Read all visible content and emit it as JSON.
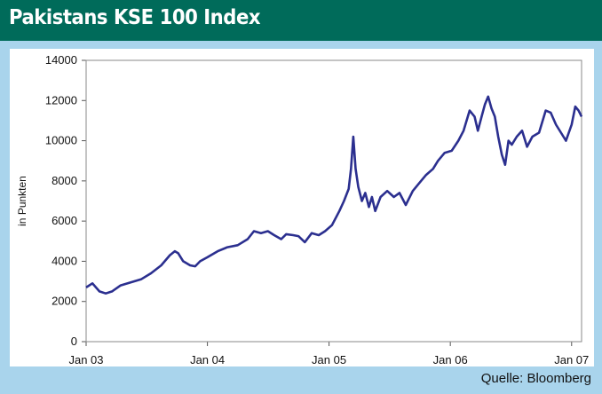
{
  "header": {
    "title": "Pakistans KSE 100 Index"
  },
  "footer": {
    "source": "Quelle: Bloomberg"
  },
  "colors": {
    "header_bg": "#006b5a",
    "background": "#a9d4ec",
    "line": "#2b2f8f",
    "plot_bg": "#ffffff"
  },
  "chart_data": {
    "type": "line",
    "title": "Pakistans KSE 100 Index",
    "xlabel": "",
    "ylabel": "in Punkten",
    "ylim": [
      0,
      14000
    ],
    "xlim": [
      "2003-01-01",
      "2007-01-31"
    ],
    "yticks": [
      "0",
      "2000",
      "4000",
      "6000",
      "8000",
      "10000",
      "12000",
      "14000"
    ],
    "xticks": [
      {
        "label": "Jan 03",
        "date": "2003-01-01"
      },
      {
        "label": "Jan 04",
        "date": "2004-01-01"
      },
      {
        "label": "Jan 05",
        "date": "2005-01-01"
      },
      {
        "label": "Jan 06",
        "date": "2006-01-01"
      },
      {
        "label": "Jan 07",
        "date": "2007-01-01"
      }
    ],
    "grid": false,
    "series": [
      {
        "values": [
          [
            "2003-01-01",
            2700
          ],
          [
            "2003-01-20",
            2900
          ],
          [
            "2003-02-10",
            2500
          ],
          [
            "2003-03-01",
            2400
          ],
          [
            "2003-03-20",
            2500
          ],
          [
            "2003-04-15",
            2800
          ],
          [
            "2003-05-15",
            2950
          ],
          [
            "2003-06-15",
            3100
          ],
          [
            "2003-07-15",
            3400
          ],
          [
            "2003-08-15",
            3800
          ],
          [
            "2003-09-10",
            4300
          ],
          [
            "2003-09-25",
            4500
          ],
          [
            "2003-10-05",
            4400
          ],
          [
            "2003-10-20",
            4000
          ],
          [
            "2003-11-10",
            3800
          ],
          [
            "2003-11-25",
            3750
          ],
          [
            "2003-12-10",
            4000
          ],
          [
            "2004-01-01",
            4200
          ],
          [
            "2004-02-01",
            4500
          ],
          [
            "2004-03-01",
            4700
          ],
          [
            "2004-04-01",
            4800
          ],
          [
            "2004-05-01",
            5100
          ],
          [
            "2004-05-20",
            5500
          ],
          [
            "2004-06-10",
            5400
          ],
          [
            "2004-07-01",
            5500
          ],
          [
            "2004-07-20",
            5300
          ],
          [
            "2004-08-10",
            5100
          ],
          [
            "2004-08-25",
            5350
          ],
          [
            "2004-09-15",
            5300
          ],
          [
            "2004-10-01",
            5250
          ],
          [
            "2004-10-20",
            4950
          ],
          [
            "2004-11-10",
            5400
          ],
          [
            "2004-12-01",
            5300
          ],
          [
            "2004-12-20",
            5500
          ],
          [
            "2005-01-10",
            5800
          ],
          [
            "2005-02-01",
            6500
          ],
          [
            "2005-02-15",
            7000
          ],
          [
            "2005-03-01",
            7600
          ],
          [
            "2005-03-08",
            8600
          ],
          [
            "2005-03-15",
            10200
          ],
          [
            "2005-03-22",
            8600
          ],
          [
            "2005-03-30",
            7700
          ],
          [
            "2005-04-10",
            7000
          ],
          [
            "2005-04-20",
            7400
          ],
          [
            "2005-05-01",
            6700
          ],
          [
            "2005-05-10",
            7200
          ],
          [
            "2005-05-20",
            6500
          ],
          [
            "2005-06-05",
            7200
          ],
          [
            "2005-06-25",
            7500
          ],
          [
            "2005-07-15",
            7200
          ],
          [
            "2005-08-01",
            7400
          ],
          [
            "2005-08-20",
            6800
          ],
          [
            "2005-09-10",
            7500
          ],
          [
            "2005-09-30",
            7900
          ],
          [
            "2005-10-20",
            8300
          ],
          [
            "2005-11-10",
            8600
          ],
          [
            "2005-11-25",
            9000
          ],
          [
            "2005-12-15",
            9400
          ],
          [
            "2006-01-05",
            9500
          ],
          [
            "2006-01-25",
            10000
          ],
          [
            "2006-02-10",
            10500
          ],
          [
            "2006-02-28",
            11500
          ],
          [
            "2006-03-15",
            11200
          ],
          [
            "2006-03-25",
            10500
          ],
          [
            "2006-04-05",
            11200
          ],
          [
            "2006-04-15",
            11800
          ],
          [
            "2006-04-25",
            12200
          ],
          [
            "2006-05-05",
            11600
          ],
          [
            "2006-05-15",
            11200
          ],
          [
            "2006-05-25",
            10200
          ],
          [
            "2006-06-05",
            9300
          ],
          [
            "2006-06-15",
            8800
          ],
          [
            "2006-06-25",
            10000
          ],
          [
            "2006-07-05",
            9800
          ],
          [
            "2006-07-20",
            10200
          ],
          [
            "2006-08-05",
            10500
          ],
          [
            "2006-08-20",
            9700
          ],
          [
            "2006-09-05",
            10200
          ],
          [
            "2006-09-25",
            10400
          ],
          [
            "2006-10-15",
            11500
          ],
          [
            "2006-10-30",
            11400
          ],
          [
            "2006-11-15",
            10800
          ],
          [
            "2006-11-30",
            10400
          ],
          [
            "2006-12-15",
            10000
          ],
          [
            "2007-01-01",
            10800
          ],
          [
            "2007-01-12",
            11700
          ],
          [
            "2007-01-22",
            11500
          ],
          [
            "2007-01-31",
            11200
          ]
        ]
      }
    ]
  }
}
